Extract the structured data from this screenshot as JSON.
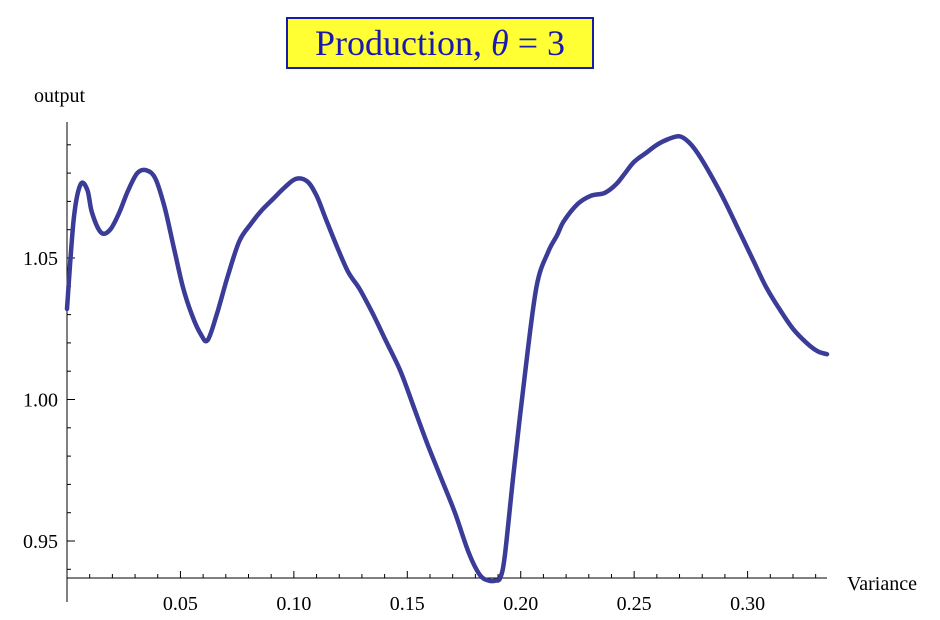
{
  "chart_data": {
    "type": "line",
    "title": {
      "prefix": "Production, ",
      "symbol": "θ",
      "suffix": " = 3"
    },
    "xlabel": "Variance",
    "ylabel": "output",
    "xlim": [
      0,
      0.335
    ],
    "ylim": [
      0.935,
      1.094
    ],
    "xticks": [
      0.05,
      0.1,
      0.15,
      0.2,
      0.25,
      0.3
    ],
    "xtick_labels": [
      "0.05",
      "0.10",
      "0.15",
      "0.20",
      "0.25",
      "0.30"
    ],
    "yticks": [
      0.95,
      1.0,
      1.05
    ],
    "ytick_labels": [
      "0.95",
      "1.00",
      "1.05"
    ],
    "grid": false,
    "line_color": "#3b3b98",
    "series": [
      {
        "x": [
          0.0,
          0.003,
          0.006,
          0.009,
          0.011,
          0.015,
          0.019,
          0.023,
          0.027,
          0.031,
          0.035,
          0.039,
          0.043,
          0.047,
          0.051,
          0.055,
          0.059,
          0.062,
          0.066,
          0.071,
          0.076,
          0.081,
          0.086,
          0.091,
          0.096,
          0.101,
          0.106,
          0.11,
          0.114,
          0.119,
          0.124,
          0.129,
          0.135,
          0.141,
          0.147,
          0.153,
          0.159,
          0.165,
          0.171,
          0.177,
          0.182,
          0.186,
          0.189,
          0.191,
          0.193,
          0.197,
          0.202,
          0.207,
          0.212,
          0.216,
          0.219,
          0.225,
          0.231,
          0.237,
          0.242,
          0.246,
          0.25,
          0.255,
          0.26,
          0.265,
          0.27,
          0.274,
          0.278,
          0.284,
          0.29,
          0.296,
          0.302,
          0.308,
          0.314,
          0.32,
          0.326,
          0.331,
          0.335
        ],
        "y": [
          1.032,
          1.064,
          1.076,
          1.074,
          1.066,
          1.059,
          1.06,
          1.066,
          1.074,
          1.08,
          1.081,
          1.078,
          1.068,
          1.054,
          1.04,
          1.03,
          1.023,
          1.021,
          1.03,
          1.044,
          1.056,
          1.062,
          1.067,
          1.071,
          1.075,
          1.078,
          1.077,
          1.072,
          1.064,
          1.054,
          1.045,
          1.039,
          1.03,
          1.02,
          1.01,
          0.997,
          0.984,
          0.972,
          0.96,
          0.946,
          0.938,
          0.936,
          0.936,
          0.937,
          0.945,
          0.975,
          1.01,
          1.04,
          1.052,
          1.058,
          1.063,
          1.069,
          1.072,
          1.073,
          1.076,
          1.08,
          1.084,
          1.087,
          1.09,
          1.092,
          1.093,
          1.091,
          1.087,
          1.079,
          1.07,
          1.06,
          1.05,
          1.04,
          1.032,
          1.025,
          1.02,
          1.017,
          1.016
        ]
      }
    ]
  }
}
